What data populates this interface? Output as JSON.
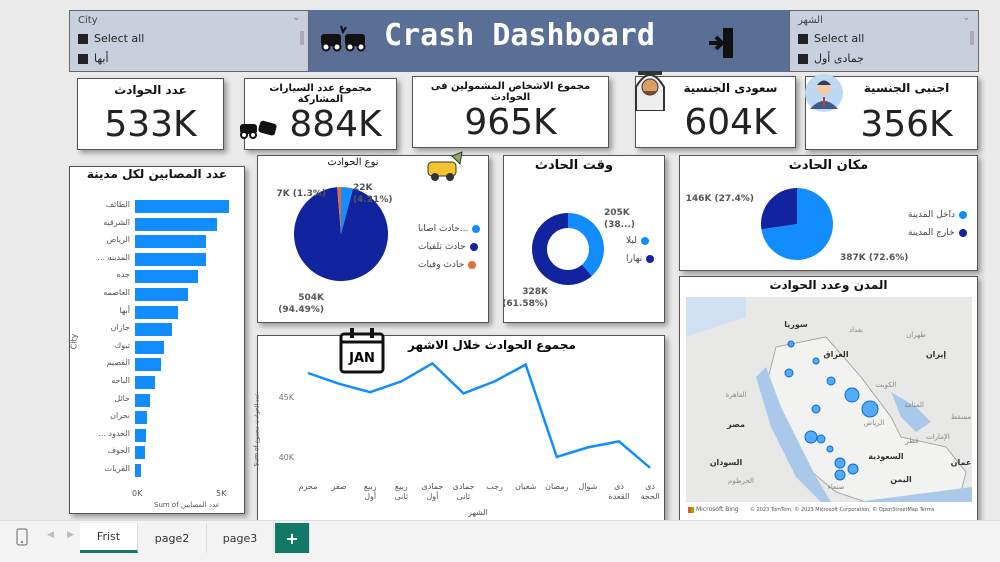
{
  "header": {
    "title": "Crash Dashboard",
    "bg": "#5a6f96"
  },
  "city_slicer": {
    "label": "City",
    "items": [
      "Select all",
      "أبها"
    ]
  },
  "month_slicer": {
    "label": "الشهر",
    "items": [
      "Select all",
      "جمادى أول"
    ]
  },
  "kpis": [
    {
      "title": "عدد الحوادث",
      "value": "533K"
    },
    {
      "title": "مجموع عدد السيارات المشاركة",
      "value": "884K"
    },
    {
      "title": "مجموع الاشخاص المشمولين فى الحوادث",
      "value": "965K"
    },
    {
      "title": "سعودى الجنسية",
      "value": "604K"
    },
    {
      "title": "اجنبى الجنسية",
      "value": "356K"
    }
  ],
  "chart_data": [
    {
      "type": "bar",
      "title": "عدد المصابين لكل مدينة",
      "ylabel": "City",
      "xlabel": "Sum of عدد المصابين",
      "xticks": [
        "0K",
        "5K"
      ],
      "xlim": [
        0,
        5.5
      ],
      "categories": [
        "الطائف",
        "الشرقيه",
        "الرياض",
        "... المدينه",
        "جده",
        "العاصمه",
        "أبها",
        "جازان",
        "تبوك",
        "القصيم",
        "الباحه",
        "حائل",
        "نجران",
        "... الحدود",
        "الجوف",
        "القريات"
      ],
      "values": [
        5.5,
        4.8,
        4.2,
        4.2,
        3.7,
        3.1,
        2.5,
        2.2,
        1.7,
        1.5,
        1.2,
        0.9,
        0.7,
        0.65,
        0.6,
        0.35
      ],
      "unit": "K",
      "color": "#118dff"
    },
    {
      "type": "pie",
      "title": "نوع الحوادث",
      "slices": [
        {
          "name": "...حادث اصابا",
          "value": 22,
          "label": "22K",
          "pct": "(4.21%)",
          "color": "#118dff"
        },
        {
          "name": "حادث تلفيات",
          "value": 504,
          "label": "504K",
          "pct": "(94.49%)",
          "color": "#12239e"
        },
        {
          "name": "حادث وفيات",
          "value": 7,
          "label": "7K (1.3%)",
          "pct": "",
          "color": "#e66c37"
        }
      ]
    },
    {
      "type": "pie",
      "subtype": "donut",
      "title": "وقت الحادث",
      "slices": [
        {
          "name": "ليلا",
          "value": 205,
          "label": "205K",
          "pct": "(38...)",
          "color": "#118dff"
        },
        {
          "name": "نهارا",
          "value": 328,
          "label": "328K",
          "pct": "(61.58%)",
          "color": "#12239e"
        }
      ]
    },
    {
      "type": "pie",
      "title": "مكان الحادث",
      "slices": [
        {
          "name": "داخل المدينة",
          "value": 387,
          "label": "387K (72.6%)",
          "color": "#118dff"
        },
        {
          "name": "خارج المدينة",
          "value": 146,
          "label": "146K (27.4%)",
          "color": "#12239e"
        }
      ]
    },
    {
      "type": "line",
      "title": "مجموع الحوادث خلال الاشهر",
      "xlabel": "الشهر",
      "ylabel": "Sum of عدد الحوادث مجموع",
      "yticks": [
        "45K",
        "40K"
      ],
      "ylim": [
        38,
        48.5
      ],
      "categories": [
        "محرم",
        "صفر",
        "ربيع أول",
        "ربيع ثانى",
        "جمادى أول",
        "جمادى ثانى",
        "رجب",
        "شعبان",
        "رمضان",
        "شوال",
        "ذى القعدة",
        "ذى الحجة"
      ],
      "values": [
        47.0,
        46.1,
        45.4,
        46.3,
        47.8,
        45.3,
        46.3,
        47.7,
        40.0,
        40.8,
        41.3,
        39.1
      ],
      "unit": "K",
      "color": "#118dff"
    }
  ],
  "map": {
    "title": "المدن وعدد الحوادث",
    "labels": [
      "سوريا",
      "العراق",
      "إيران",
      "مصر",
      "القاهرة",
      "السعودية",
      "الرياض",
      "السودان",
      "الخرطوم",
      "اليمن",
      "صنعاء",
      "عمان",
      "قطر",
      "الإمارات",
      "الكويت",
      "المنامة",
      "مسقط",
      "طهران",
      "بغداد"
    ],
    "attribution": "© 2023 TomTom, © 2023 Microsoft Corporation, © OpenStreetMap Terms",
    "brand": "Microsoft Bing"
  },
  "tabs": {
    "items": [
      "Frist",
      "page2",
      "page3"
    ],
    "active": "Frist",
    "add": "+"
  }
}
